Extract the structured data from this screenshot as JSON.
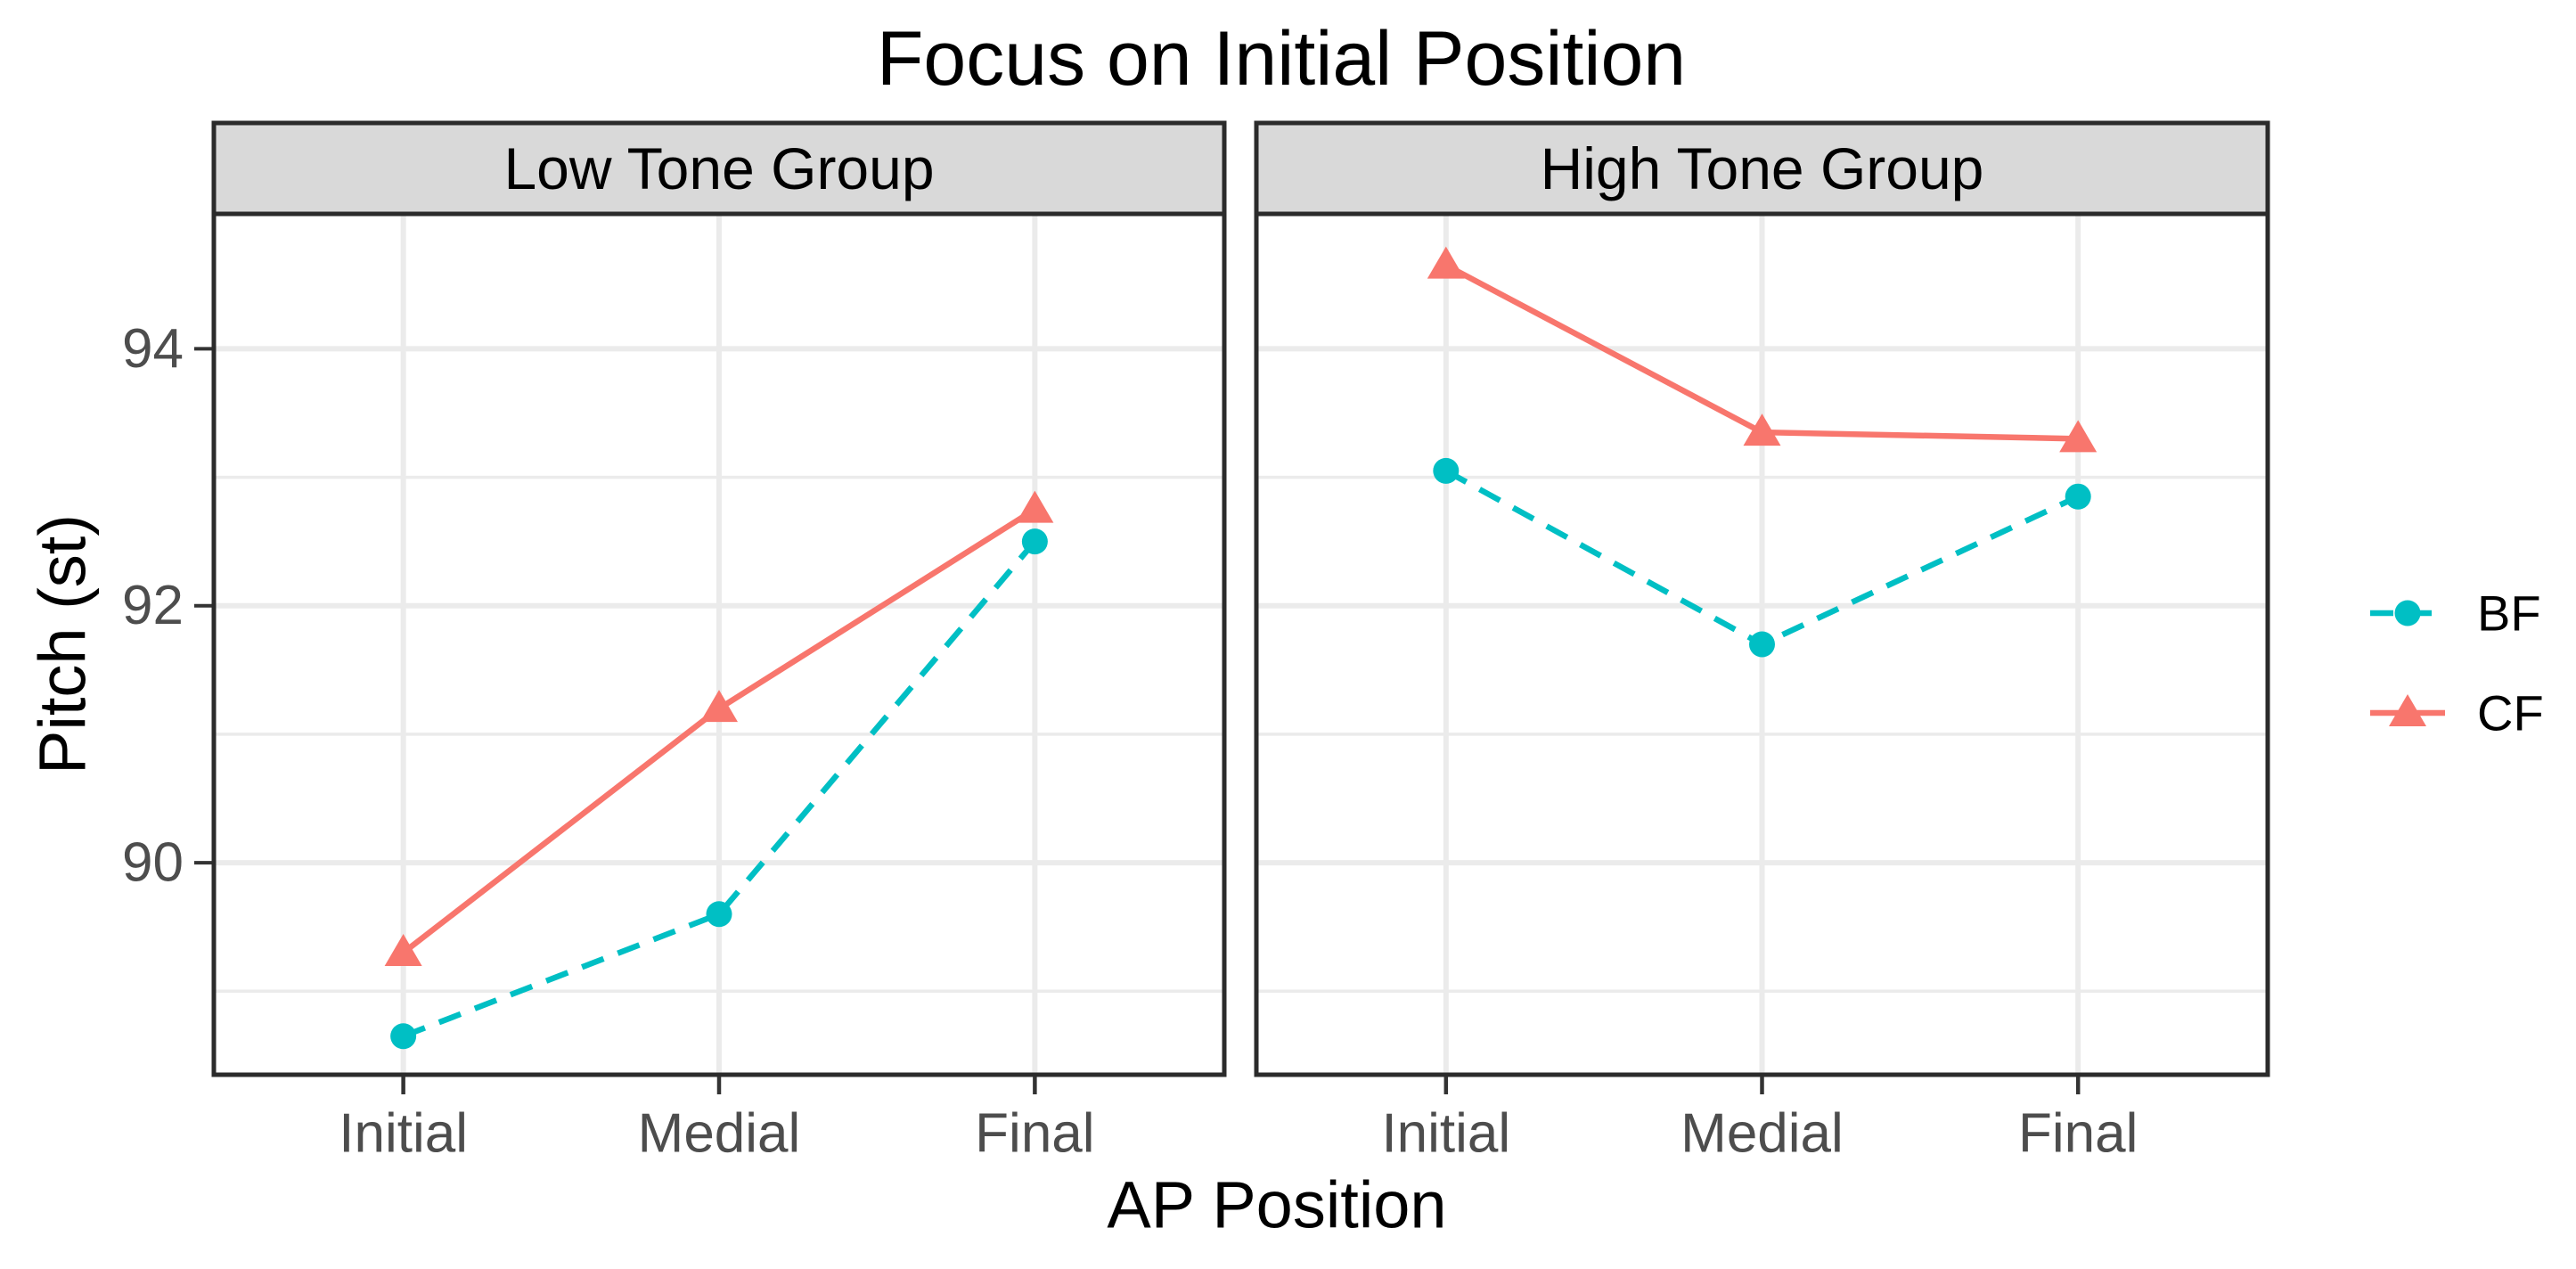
{
  "chart_data": {
    "type": "line",
    "title": "Focus on Initial Position",
    "xlabel": "AP Position",
    "ylabel": "Pitch (st)",
    "categories": [
      "Initial",
      "Medial",
      "Final"
    ],
    "y_ticks": [
      94,
      92,
      90
    ],
    "y_minor_gridlines": [
      89,
      91,
      93
    ],
    "ylim": [
      88.35,
      95.05
    ],
    "grid": "major and minor horizontal, major vertical at categories",
    "legend_position": "right",
    "facets": [
      {
        "label": "Low Tone Group",
        "series": [
          {
            "name": "BF",
            "values": [
              88.65,
              89.6,
              92.5
            ]
          },
          {
            "name": "CF",
            "values": [
              89.3,
              91.2,
              92.75
            ]
          }
        ]
      },
      {
        "label": "High Tone Group",
        "series": [
          {
            "name": "BF",
            "values": [
              93.05,
              91.7,
              92.85
            ]
          },
          {
            "name": "CF",
            "values": [
              94.65,
              93.35,
              93.3
            ]
          }
        ]
      }
    ],
    "series_style": [
      {
        "name": "BF",
        "color": "#00BFC4",
        "marker": "circle",
        "linetype": "dashed"
      },
      {
        "name": "CF",
        "color": "#F8766D",
        "marker": "triangle",
        "linetype": "solid"
      }
    ],
    "legend": {
      "entries": [
        "BF",
        "CF"
      ]
    },
    "theme": {
      "strip_background": "#D9D9D9",
      "panel_background": "#FFFFFF",
      "panel_border": "#2B2B2B",
      "gridline_color": "#EBEBEB",
      "axis_text_color": "#4D4D4D",
      "tick_color": "#333333",
      "title_color": "#000000"
    }
  }
}
